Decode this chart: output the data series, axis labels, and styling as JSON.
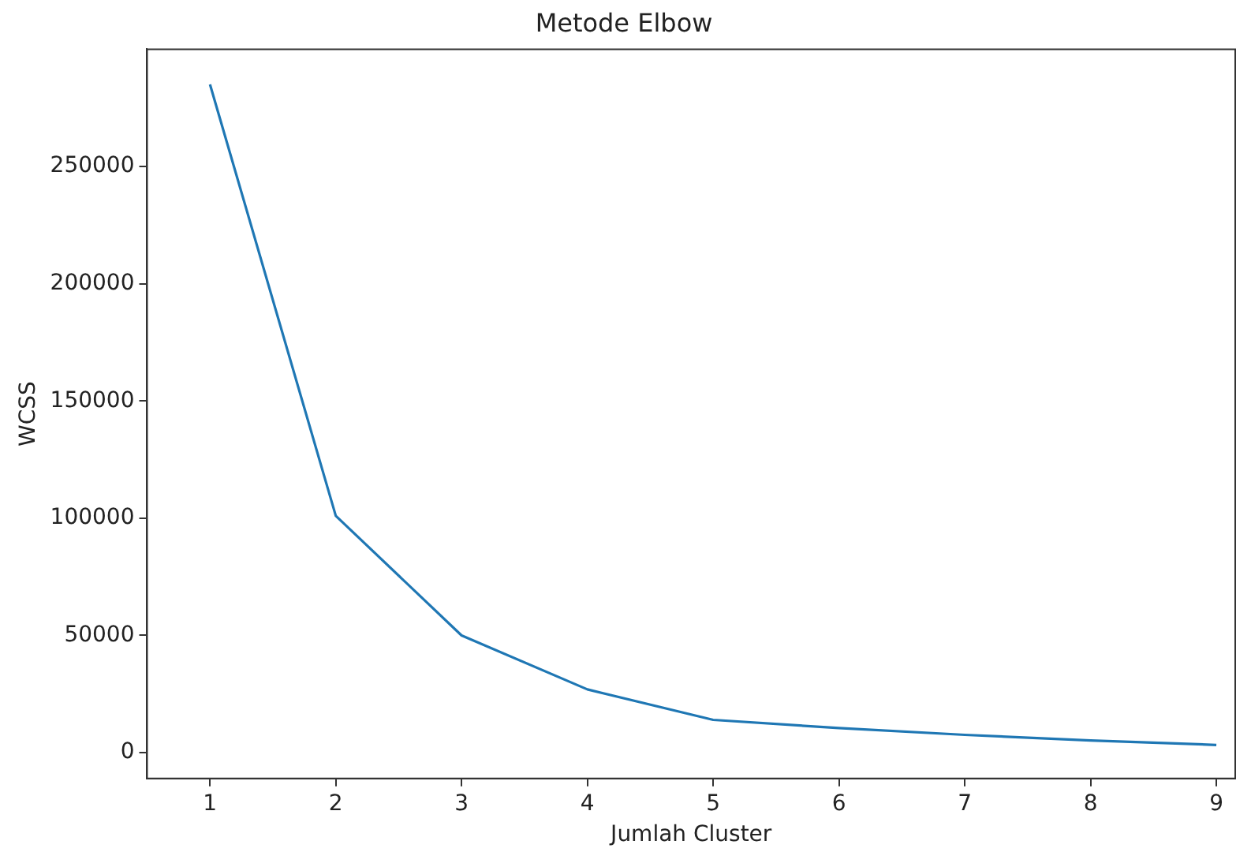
{
  "chart_data": {
    "type": "line",
    "title": "Metode Elbow",
    "xlabel": "Jumlah Cluster",
    "ylabel": "WCSS",
    "x": [
      1,
      2,
      3,
      4,
      5,
      6,
      7,
      8,
      9
    ],
    "series": [
      {
        "color": "#1f77b4",
        "values": [
          285000,
          101000,
          50000,
          27000,
          14000,
          10500,
          7600,
          5200,
          3300
        ]
      }
    ],
    "xlim": [
      0.5,
      9.15
    ],
    "xticks": [
      1,
      2,
      3,
      4,
      5,
      6,
      7,
      8,
      9
    ],
    "ylim": [
      -11000,
      300000
    ],
    "yticks": [
      0,
      50000,
      100000,
      150000,
      200000,
      250000
    ],
    "grid": false,
    "legend": false,
    "marker": "none",
    "line_style": "solid"
  }
}
